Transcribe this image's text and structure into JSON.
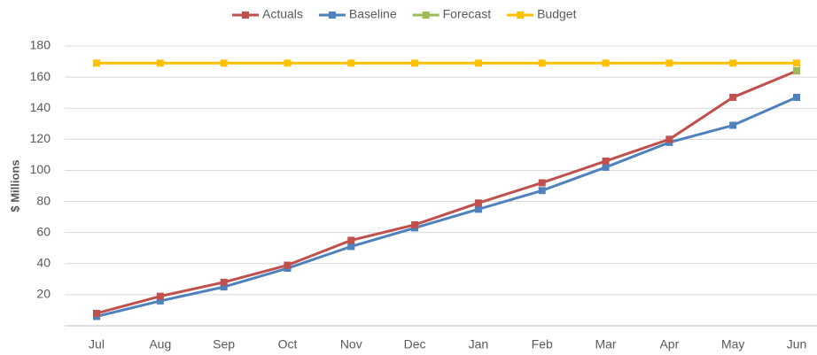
{
  "chart_data": {
    "type": "line",
    "y_label": "$ Millions",
    "categories": [
      "Jul",
      "Aug",
      "Sep",
      "Oct",
      "Nov",
      "Dec",
      "Jan",
      "Feb",
      "Mar",
      "Apr",
      "May",
      "Jun"
    ],
    "series": [
      {
        "name": "Actuals",
        "color": "#c0504d",
        "values": [
          8,
          19,
          28,
          39,
          55,
          65,
          79,
          92,
          106,
          120,
          147,
          164
        ]
      },
      {
        "name": "Baseline",
        "color": "#4f81bd",
        "values": [
          6,
          16,
          25,
          37,
          51,
          63,
          75,
          87,
          102,
          118,
          129,
          147
        ]
      },
      {
        "name": "Forecast",
        "color": "#9bbb59",
        "values": [
          null,
          null,
          null,
          null,
          null,
          null,
          null,
          null,
          null,
          null,
          null,
          164
        ]
      },
      {
        "name": "Budget",
        "color": "#ffc000",
        "values": [
          169,
          169,
          169,
          169,
          169,
          169,
          169,
          169,
          169,
          169,
          169,
          169
        ]
      }
    ],
    "ylim": [
      0,
      180
    ],
    "yticks": [
      20,
      40,
      60,
      80,
      100,
      120,
      140,
      160,
      180
    ],
    "grid": true,
    "legend": "top"
  }
}
